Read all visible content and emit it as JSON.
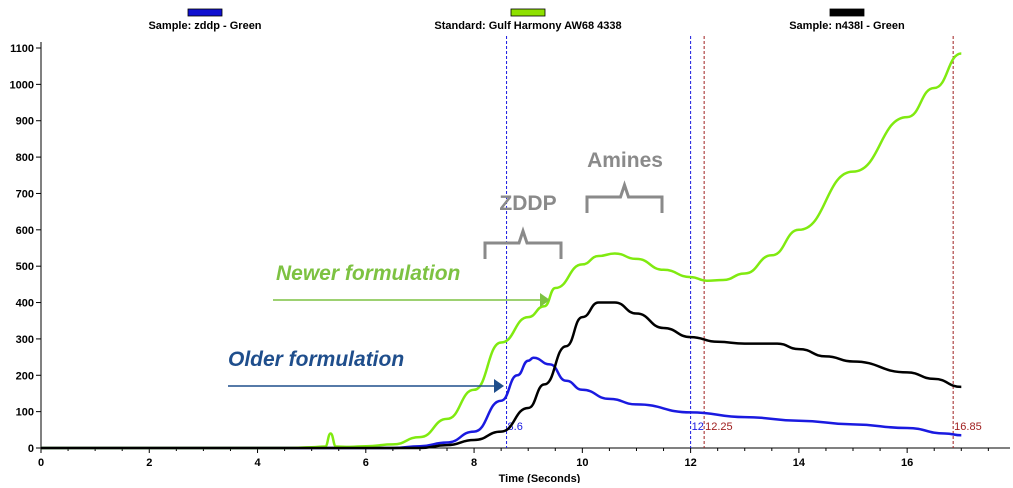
{
  "chart_data": {
    "type": "line",
    "xlabel": "Time (Seconds)",
    "ylabel": "",
    "xlim": [
      0,
      17.9
    ],
    "ylim": [
      0,
      1100
    ],
    "x_ticks": [
      0,
      2,
      4,
      6,
      8,
      10,
      12,
      14,
      16
    ],
    "y_ticks": [
      0,
      100,
      200,
      300,
      400,
      500,
      600,
      700,
      800,
      900,
      1000,
      1100
    ],
    "grid": false,
    "legend_position": "top",
    "legend": [
      {
        "label": "Sample: zddp - Green",
        "color": "#1010d0"
      },
      {
        "label": "Standard: Gulf Harmony AW68 4338",
        "color": "#8ee000"
      },
      {
        "label": "Sample: n438l - Green",
        "color": "#000000"
      }
    ],
    "series": [
      {
        "name": "Sample: zddp - Green",
        "color": "#1a1ae0",
        "x": [
          0,
          6.5,
          7.0,
          7.5,
          8.0,
          8.5,
          8.8,
          9.0,
          9.1,
          9.4,
          9.7,
          10.0,
          10.5,
          11.0,
          12.0,
          13.0,
          14.0,
          15.0,
          16.0,
          16.7,
          17.0
        ],
        "y": [
          0,
          0,
          5,
          15,
          45,
          130,
          200,
          240,
          248,
          230,
          185,
          160,
          135,
          120,
          98,
          85,
          75,
          65,
          55,
          40,
          35
        ]
      },
      {
        "name": "Standard: Gulf Harmony AW68 4338",
        "color": "#80ea10",
        "x": [
          0,
          4.6,
          5.0,
          5.25,
          5.35,
          5.45,
          5.7,
          6.0,
          6.5,
          7.0,
          7.5,
          8.0,
          8.5,
          9.0,
          9.3,
          9.5,
          10.0,
          10.3,
          10.6,
          11.0,
          11.5,
          12.0,
          12.3,
          12.6,
          13.0,
          13.5,
          14.0,
          15.0,
          16.0,
          16.5,
          17.0
        ],
        "y": [
          0,
          0,
          2,
          4,
          40,
          4,
          3,
          5,
          10,
          30,
          80,
          160,
          290,
          360,
          390,
          440,
          505,
          528,
          535,
          520,
          490,
          470,
          460,
          462,
          480,
          530,
          600,
          760,
          910,
          990,
          1085
        ]
      },
      {
        "name": "Sample: n438l - Green",
        "color": "#000000",
        "x": [
          0,
          7.0,
          7.5,
          8.0,
          8.5,
          9.0,
          9.3,
          9.7,
          10.0,
          10.3,
          10.6,
          11.0,
          11.5,
          12.0,
          12.5,
          13.0,
          13.6,
          14.0,
          14.5,
          15.0,
          16.0,
          16.5,
          17.0
        ],
        "y": [
          0,
          0,
          8,
          22,
          45,
          110,
          175,
          280,
          360,
          400,
          400,
          370,
          330,
          305,
          292,
          287,
          287,
          272,
          252,
          238,
          208,
          190,
          168
        ]
      }
    ],
    "vertical_markers": [
      {
        "x": 8.6,
        "label": "8.6",
        "color": "#1a1ae0"
      },
      {
        "x": 12.0,
        "label": "12",
        "color": "#1a1ae0"
      },
      {
        "x": 12.25,
        "label": "12.25",
        "color": "#a02020"
      },
      {
        "x": 16.85,
        "label": "16.85",
        "color": "#a02020"
      }
    ],
    "annotations": {
      "zddp": "ZDDP",
      "amines": "Amines",
      "newer": "Newer formulation",
      "older": "Older formulation"
    },
    "colors": {
      "annotation_gray": "#8a8a8a",
      "newer": "#7dc242",
      "older": "#1f4e8c"
    }
  }
}
